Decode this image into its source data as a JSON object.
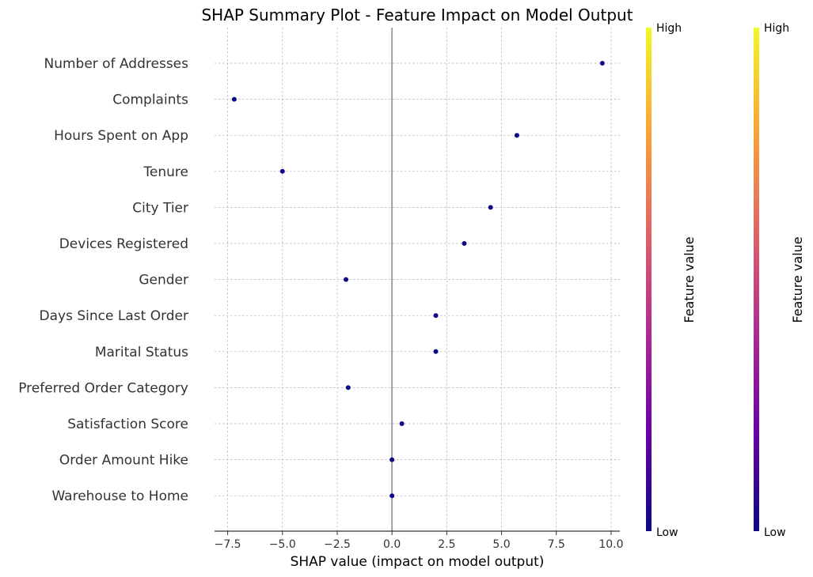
{
  "chart_data": {
    "type": "scatter",
    "title": "SHAP Summary Plot - Feature Impact on Model Output",
    "xlabel": "SHAP value (impact on model output)",
    "xlim": [
      -8.1,
      10.4
    ],
    "xticks": [
      -7.5,
      -5.0,
      -2.5,
      0.0,
      2.5,
      5.0,
      7.5,
      10.0
    ],
    "xtick_labels": [
      "−7.5",
      "−5.0",
      "−2.5",
      "0.0",
      "2.5",
      "5.0",
      "7.5",
      "10.0"
    ],
    "grid": true,
    "point_color": "#0d0887",
    "features": [
      {
        "name": "Number of Addresses",
        "value": 9.6
      },
      {
        "name": "Complaints",
        "value": -7.2
      },
      {
        "name": "Hours Spent on App",
        "value": 5.7
      },
      {
        "name": "Tenure",
        "value": -5.0
      },
      {
        "name": "City Tier",
        "value": 4.5
      },
      {
        "name": "Devices Registered",
        "value": 3.3
      },
      {
        "name": "Gender",
        "value": -2.1
      },
      {
        "name": "Days Since Last Order",
        "value": 2.0
      },
      {
        "name": "Marital Status",
        "value": 2.0
      },
      {
        "name": "Preferred Order Category",
        "value": -2.0
      },
      {
        "name": "Satisfaction Score",
        "value": 0.45
      },
      {
        "name": "Order Amount Hike",
        "value": 0.0
      },
      {
        "name": "Warehouse to Home",
        "value": 0.0
      }
    ],
    "colorbars": [
      {
        "label": "Feature value",
        "high_label": "High",
        "low_label": "Low",
        "colormap": "plasma"
      },
      {
        "label": "Feature value",
        "high_label": "High",
        "low_label": "Low",
        "colormap": "plasma"
      }
    ],
    "colormap_stops": [
      "#0d0887",
      "#6a00a8",
      "#b12a90",
      "#e16462",
      "#fca636",
      "#f0f921"
    ]
  }
}
